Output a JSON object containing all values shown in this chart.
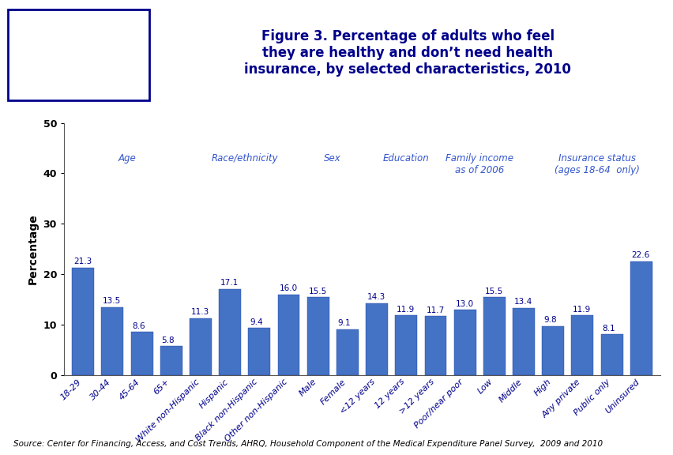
{
  "categories": [
    "18-29",
    "30-44",
    "45-64",
    "65+",
    "White non-Hispanic",
    "Hispanic",
    "Black non-Hispanic",
    "Other non-Hispanic",
    "Male",
    "Female",
    "<12 years",
    "12 years",
    ">12 years",
    "Poor/near poor",
    "Low",
    "Middle",
    "High",
    "Any private",
    "Public only",
    "Uninsured"
  ],
  "values": [
    21.3,
    13.5,
    8.6,
    5.8,
    11.3,
    17.1,
    9.4,
    16.0,
    15.5,
    9.1,
    14.3,
    11.9,
    11.7,
    13.0,
    15.5,
    13.4,
    9.8,
    11.9,
    8.1,
    22.6
  ],
  "group_labels": [
    "Age",
    "Race/ethnicity",
    "Sex",
    "Education",
    "Family income\nas of 2006",
    "Insurance status\n(ages 18-64  only)"
  ],
  "group_x_positions": [
    1.5,
    5.5,
    8.5,
    11.0,
    13.5,
    17.5
  ],
  "title_line1": "Figure 3. Percentage of adults who feel",
  "title_line2": "they are healthy and don’t need health",
  "title_line3": "insurance, by selected characteristics, 2010",
  "ylabel": "Percentage",
  "ylim": [
    0,
    50
  ],
  "yticks": [
    0,
    10,
    20,
    30,
    40,
    50
  ],
  "source_text": "Source: Center for Financing, Access, and Cost Trends, AHRQ, Household Component of the Medical Expenditure Panel Survey,  2009 and 2010",
  "background_color": "#FFFFFF",
  "title_color": "#00008B",
  "bar_fill": "#4472C4",
  "label_color": "#00008B",
  "group_label_color": "#3355CC",
  "axis_color": "#333333",
  "header_line_color": "#00008B",
  "logo_border_color": "#00008B"
}
